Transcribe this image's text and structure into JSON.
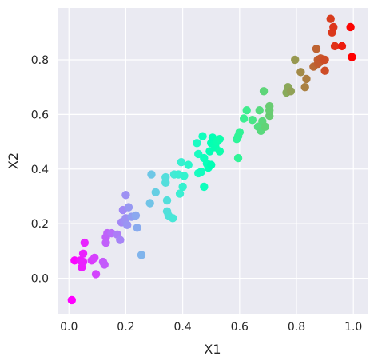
{
  "chart_data": {
    "type": "scatter",
    "title": "",
    "xlabel": "X1",
    "ylabel": "X2",
    "xlim": [
      -0.04,
      1.05
    ],
    "ylim": [
      -0.13,
      0.99
    ],
    "xticks": [
      "0.0",
      "0.2",
      "0.4",
      "0.6",
      "0.8",
      "1.0"
    ],
    "yticks": [
      "0.0",
      "0.2",
      "0.4",
      "0.6",
      "0.8"
    ],
    "grid": true,
    "background_color": "#EAEAF2",
    "colormap": "rainbow",
    "color_by": "x",
    "points": [
      {
        "x": 0.01,
        "y": -0.08
      },
      {
        "x": 0.02,
        "y": 0.065
      },
      {
        "x": 0.04,
        "y": 0.065
      },
      {
        "x": 0.045,
        "y": 0.04
      },
      {
        "x": 0.05,
        "y": 0.09
      },
      {
        "x": 0.05,
        "y": 0.06
      },
      {
        "x": 0.055,
        "y": 0.13
      },
      {
        "x": 0.08,
        "y": 0.065
      },
      {
        "x": 0.09,
        "y": 0.075
      },
      {
        "x": 0.095,
        "y": 0.015
      },
      {
        "x": 0.12,
        "y": 0.06
      },
      {
        "x": 0.125,
        "y": 0.05
      },
      {
        "x": 0.13,
        "y": 0.15
      },
      {
        "x": 0.13,
        "y": 0.13
      },
      {
        "x": 0.135,
        "y": 0.165
      },
      {
        "x": 0.15,
        "y": 0.165
      },
      {
        "x": 0.17,
        "y": 0.16
      },
      {
        "x": 0.18,
        "y": 0.14
      },
      {
        "x": 0.185,
        "y": 0.205
      },
      {
        "x": 0.19,
        "y": 0.25
      },
      {
        "x": 0.195,
        "y": 0.21
      },
      {
        "x": 0.2,
        "y": 0.305
      },
      {
        "x": 0.2,
        "y": 0.22
      },
      {
        "x": 0.205,
        "y": 0.195
      },
      {
        "x": 0.21,
        "y": 0.26
      },
      {
        "x": 0.22,
        "y": 0.225
      },
      {
        "x": 0.235,
        "y": 0.23
      },
      {
        "x": 0.24,
        "y": 0.185
      },
      {
        "x": 0.255,
        "y": 0.085
      },
      {
        "x": 0.285,
        "y": 0.275
      },
      {
        "x": 0.29,
        "y": 0.38
      },
      {
        "x": 0.305,
        "y": 0.315
      },
      {
        "x": 0.34,
        "y": 0.37
      },
      {
        "x": 0.34,
        "y": 0.35
      },
      {
        "x": 0.345,
        "y": 0.245
      },
      {
        "x": 0.345,
        "y": 0.285
      },
      {
        "x": 0.35,
        "y": 0.23
      },
      {
        "x": 0.365,
        "y": 0.22
      },
      {
        "x": 0.37,
        "y": 0.38
      },
      {
        "x": 0.385,
        "y": 0.38
      },
      {
        "x": 0.39,
        "y": 0.31
      },
      {
        "x": 0.395,
        "y": 0.425
      },
      {
        "x": 0.4,
        "y": 0.335
      },
      {
        "x": 0.405,
        "y": 0.375
      },
      {
        "x": 0.42,
        "y": 0.415
      },
      {
        "x": 0.45,
        "y": 0.495
      },
      {
        "x": 0.455,
        "y": 0.385
      },
      {
        "x": 0.455,
        "y": 0.455
      },
      {
        "x": 0.465,
        "y": 0.39
      },
      {
        "x": 0.47,
        "y": 0.52
      },
      {
        "x": 0.475,
        "y": 0.44
      },
      {
        "x": 0.475,
        "y": 0.335
      },
      {
        "x": 0.485,
        "y": 0.42
      },
      {
        "x": 0.49,
        "y": 0.405
      },
      {
        "x": 0.495,
        "y": 0.465
      },
      {
        "x": 0.5,
        "y": 0.495
      },
      {
        "x": 0.5,
        "y": 0.415
      },
      {
        "x": 0.505,
        "y": 0.515
      },
      {
        "x": 0.51,
        "y": 0.49
      },
      {
        "x": 0.515,
        "y": 0.48
      },
      {
        "x": 0.52,
        "y": 0.5
      },
      {
        "x": 0.53,
        "y": 0.465
      },
      {
        "x": 0.53,
        "y": 0.51
      },
      {
        "x": 0.59,
        "y": 0.51
      },
      {
        "x": 0.595,
        "y": 0.52
      },
      {
        "x": 0.595,
        "y": 0.44
      },
      {
        "x": 0.6,
        "y": 0.535
      },
      {
        "x": 0.615,
        "y": 0.585
      },
      {
        "x": 0.625,
        "y": 0.615
      },
      {
        "x": 0.645,
        "y": 0.58
      },
      {
        "x": 0.665,
        "y": 0.555
      },
      {
        "x": 0.67,
        "y": 0.615
      },
      {
        "x": 0.675,
        "y": 0.54
      },
      {
        "x": 0.68,
        "y": 0.575
      },
      {
        "x": 0.685,
        "y": 0.685
      },
      {
        "x": 0.69,
        "y": 0.555
      },
      {
        "x": 0.705,
        "y": 0.63
      },
      {
        "x": 0.705,
        "y": 0.615
      },
      {
        "x": 0.705,
        "y": 0.595
      },
      {
        "x": 0.765,
        "y": 0.68
      },
      {
        "x": 0.77,
        "y": 0.7
      },
      {
        "x": 0.78,
        "y": 0.685
      },
      {
        "x": 0.795,
        "y": 0.8
      },
      {
        "x": 0.815,
        "y": 0.755
      },
      {
        "x": 0.83,
        "y": 0.7
      },
      {
        "x": 0.835,
        "y": 0.73
      },
      {
        "x": 0.86,
        "y": 0.775
      },
      {
        "x": 0.87,
        "y": 0.84
      },
      {
        "x": 0.875,
        "y": 0.8
      },
      {
        "x": 0.875,
        "y": 0.785
      },
      {
        "x": 0.88,
        "y": 0.79
      },
      {
        "x": 0.885,
        "y": 0.805
      },
      {
        "x": 0.895,
        "y": 0.8
      },
      {
        "x": 0.9,
        "y": 0.76
      },
      {
        "x": 0.9,
        "y": 0.8
      },
      {
        "x": 0.92,
        "y": 0.95
      },
      {
        "x": 0.925,
        "y": 0.9
      },
      {
        "x": 0.93,
        "y": 0.92
      },
      {
        "x": 0.935,
        "y": 0.85
      },
      {
        "x": 0.96,
        "y": 0.85
      },
      {
        "x": 0.99,
        "y": 0.92
      },
      {
        "x": 0.995,
        "y": 0.81
      }
    ]
  }
}
